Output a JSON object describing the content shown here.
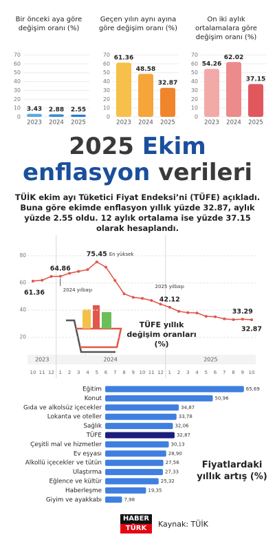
{
  "chart_data": [
    {
      "type": "bar",
      "title": "Bir önceki aya göre değişim oranı (%)",
      "categories": [
        "2023",
        "2024",
        "2025"
      ],
      "values": [
        3.43,
        2.88,
        2.55
      ],
      "colors": [
        "#5aa9e6",
        "#3d8fd6",
        "#2a7bd0"
      ],
      "ylim": [
        0,
        70
      ],
      "yticks": [
        0,
        10,
        20,
        30,
        40,
        50,
        60,
        70
      ],
      "grid": true
    },
    {
      "type": "bar",
      "title": "Geçen yılın aynı ayına göre değişim oranı (%)",
      "categories": [
        "2023",
        "2024",
        "2025"
      ],
      "values": [
        61.36,
        48.58,
        32.87
      ],
      "colors": [
        "#f7c04a",
        "#f5a53a",
        "#f0852c"
      ],
      "ylim": [
        0,
        70
      ],
      "yticks": [
        0,
        10,
        20,
        30,
        40,
        50,
        60,
        70
      ],
      "grid": true
    },
    {
      "type": "bar",
      "title": "On iki aylık ortalamalara göre değişim oranı (%)",
      "categories": [
        "2023",
        "2024",
        "2025"
      ],
      "values": [
        54.26,
        62.02,
        37.15
      ],
      "colors": [
        "#f2aaa8",
        "#ec8a8c",
        "#e0585e"
      ],
      "ylim": [
        0,
        70
      ],
      "yticks": [
        0,
        10,
        20,
        30,
        40,
        50,
        60,
        70
      ],
      "grid": true
    },
    {
      "type": "line",
      "title": "TÜFE yıllık değişim oranları (%)",
      "categories": [
        "10",
        "11",
        "12",
        "1",
        "2",
        "3",
        "4",
        "5",
        "6",
        "7",
        "8",
        "9",
        "10",
        "11",
        "12",
        "1",
        "2",
        "3",
        "4",
        "5",
        "6",
        "7",
        "8",
        "9",
        "10"
      ],
      "years": [
        "2023",
        "2024",
        "2025"
      ],
      "values": [
        61.36,
        61.98,
        64.77,
        64.86,
        67.07,
        68.5,
        69.8,
        75.45,
        71.6,
        61.78,
        51.97,
        49.38,
        48.58,
        47.09,
        44.38,
        42.12,
        39.05,
        38.1,
        37.86,
        35.41,
        35.05,
        33.52,
        32.95,
        33.29,
        32.87
      ],
      "value_labels": [
        "61.36",
        null,
        null,
        "64.86",
        null,
        null,
        null,
        "75.45",
        null,
        null,
        null,
        null,
        null,
        null,
        null,
        "42.12",
        null,
        null,
        null,
        null,
        null,
        null,
        null,
        "33.29",
        "32.87"
      ],
      "annotations": [
        "En yüksek",
        "2024 yılbaşı",
        "2025 yılbaşı"
      ],
      "color": "#e2564b",
      "ylim": [
        0,
        80
      ],
      "yticks": [
        20,
        40,
        60,
        80
      ],
      "grid": true
    },
    {
      "type": "hbar",
      "title": "Fiyatlardaki yıllık artış (%)",
      "categories": [
        "Eğitim",
        "Konut",
        "Gıda ve alkolsüz içecekler",
        "Lokanta ve oteller",
        "Sağlık",
        "TÜFE",
        "Çeşitli mal ve hizmetler",
        "Ev eşyası",
        "Alkollü içecekler ve tütün",
        "Ulaştırma",
        "Eğlence ve kültür",
        "Haberleşme",
        "Giyim ve ayakkabı"
      ],
      "values": [
        65.69,
        50.96,
        34.87,
        33.78,
        32.06,
        32.87,
        30.13,
        28.9,
        27.56,
        27.33,
        25.32,
        19.35,
        7.98
      ],
      "value_labels": [
        "65,69",
        "50,96",
        "34,87",
        "33,78",
        "32,06",
        "32,87",
        "30,13",
        "28,90",
        "27,56",
        "27,33",
        "25,32",
        "19,35",
        "7,98"
      ],
      "colors": [
        "#3f7fe0",
        "#3f7fe0",
        "#3f7fe0",
        "#3f7fe0",
        "#3f7fe0",
        "#1b1f7a",
        "#3f7fe0",
        "#3f7fe0",
        "#3f7fe0",
        "#3f7fe0",
        "#3f7fe0",
        "#3f7fe0",
        "#3f7fe0"
      ],
      "xlim": [
        0,
        70
      ]
    }
  ],
  "headline": {
    "part1": "2025",
    "part2": "Ekim",
    "part3": "enflasyon",
    "part4": "verileri"
  },
  "text": "TÜİK ekim ayı Tüketici Fiyat Endeksi’ni (TÜFE) açıkladı. Buna göre ekimde enflasyon yıllık yüzde 32.87, aylık yüzde 2.55 oldu. 12 aylık ortalama ise yüzde 37.15 olarak hesaplandı.",
  "footer": {
    "logo1": "HABER",
    "logo2": "TÜRK",
    "source": "Kaynak: TÜİK"
  }
}
